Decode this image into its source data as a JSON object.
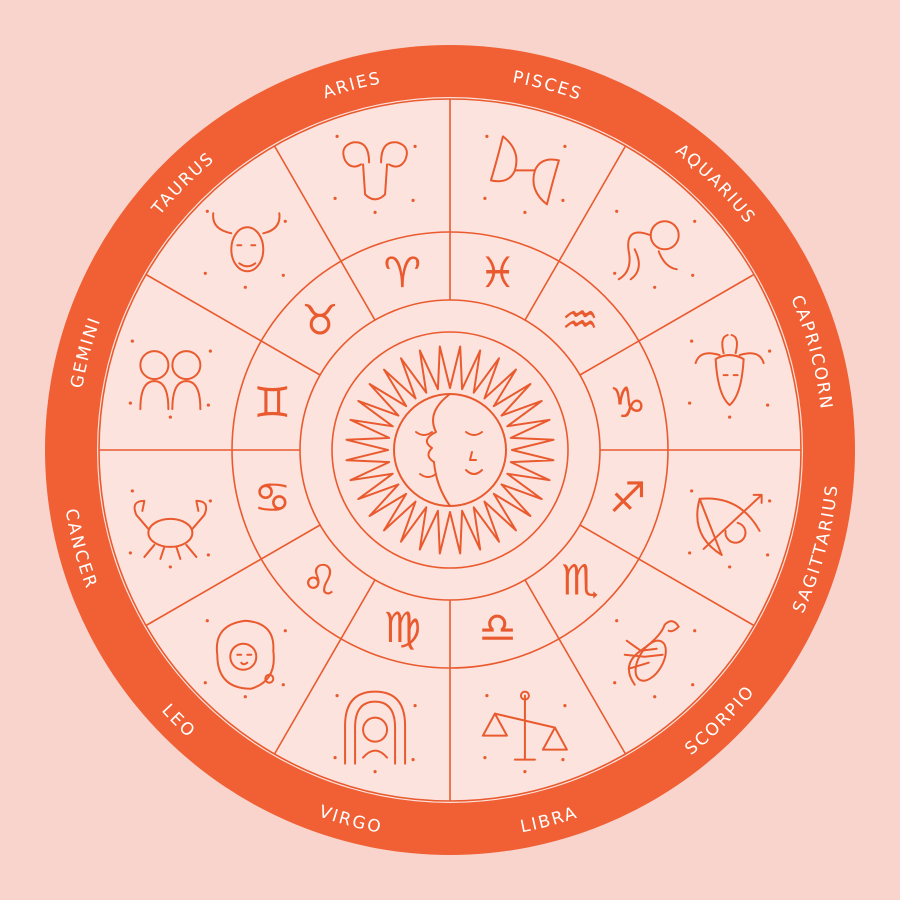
{
  "colors": {
    "background": "#f9d4cc",
    "ring": "#f06034",
    "face": "#fde3de",
    "line": "#e95b2f",
    "label": "#ffffff"
  },
  "signs": [
    {
      "name": "SAGITTARIUS",
      "glyph": "♐",
      "icon": "archer-bow-arrow-icon"
    },
    {
      "name": "SCORPIO",
      "glyph": "♏",
      "icon": "scorpion-icon"
    },
    {
      "name": "LIBRA",
      "glyph": "♎",
      "icon": "balance-scales-icon"
    },
    {
      "name": "VIRGO",
      "glyph": "♍",
      "icon": "maiden-icon"
    },
    {
      "name": "LEO",
      "glyph": "♌",
      "icon": "lion-icon"
    },
    {
      "name": "CANCER",
      "glyph": "♋",
      "icon": "crab-icon"
    },
    {
      "name": "GEMINI",
      "glyph": "♊",
      "icon": "twins-icon"
    },
    {
      "name": "TAURUS",
      "glyph": "♉",
      "icon": "bull-icon"
    },
    {
      "name": "ARIES",
      "glyph": "♈",
      "icon": "ram-icon"
    },
    {
      "name": "PISCES",
      "glyph": "♓",
      "icon": "fish-pair-icon"
    },
    {
      "name": "AQUARIUS",
      "glyph": "♒",
      "icon": "water-bearer-icon"
    },
    {
      "name": "CAPRICORN",
      "glyph": "♑",
      "icon": "goat-icon"
    }
  ],
  "center": {
    "icon": "sun-moon-face-icon"
  }
}
